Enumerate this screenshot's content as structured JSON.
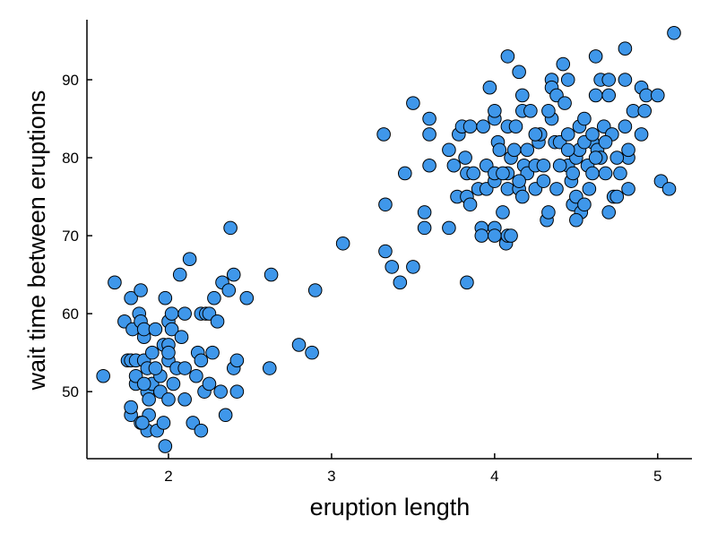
{
  "chart_data": {
    "type": "scatter",
    "title": "",
    "xlabel": "eruption length",
    "ylabel": "wait time between eruptions",
    "xlim": [
      1.5,
      5.21
    ],
    "ylim": [
      41.4,
      97.7
    ],
    "xticks": [
      2,
      3,
      4,
      5
    ],
    "yticks": [
      50,
      60,
      70,
      80,
      90
    ],
    "grid": false,
    "legend": "none",
    "marker_color": "#3f97ea",
    "marker_edge_color": "#000000",
    "points": [
      [
        1.6,
        52
      ],
      [
        1.67,
        64
      ],
      [
        1.73,
        59
      ],
      [
        1.75,
        54
      ],
      [
        1.77,
        54
      ],
      [
        1.77,
        62
      ],
      [
        1.78,
        58
      ],
      [
        1.77,
        47
      ],
      [
        1.77,
        48
      ],
      [
        1.8,
        51
      ],
      [
        1.8,
        52
      ],
      [
        1.8,
        54
      ],
      [
        1.82,
        60
      ],
      [
        1.83,
        63
      ],
      [
        1.83,
        59
      ],
      [
        1.83,
        46
      ],
      [
        1.85,
        57
      ],
      [
        1.85,
        58
      ],
      [
        1.85,
        54
      ],
      [
        1.87,
        45
      ],
      [
        1.87,
        50
      ],
      [
        1.87,
        53
      ],
      [
        1.88,
        47
      ],
      [
        1.88,
        49
      ],
      [
        1.9,
        51
      ],
      [
        1.9,
        55
      ],
      [
        1.92,
        58
      ],
      [
        1.93,
        45
      ],
      [
        1.95,
        52
      ],
      [
        1.95,
        50
      ],
      [
        1.97,
        56
      ],
      [
        1.98,
        43
      ],
      [
        1.98,
        62
      ],
      [
        2.0,
        59
      ],
      [
        2.0,
        56
      ],
      [
        2.0,
        54
      ],
      [
        2.0,
        49
      ],
      [
        2.02,
        58
      ],
      [
        2.02,
        60
      ],
      [
        2.03,
        51
      ],
      [
        2.05,
        53
      ],
      [
        2.07,
        65
      ],
      [
        2.08,
        57
      ],
      [
        2.1,
        60
      ],
      [
        2.1,
        49
      ],
      [
        2.1,
        53
      ],
      [
        2.13,
        67
      ],
      [
        2.15,
        46
      ],
      [
        2.17,
        52
      ],
      [
        2.18,
        55
      ],
      [
        2.2,
        54
      ],
      [
        2.2,
        45
      ],
      [
        2.2,
        60
      ],
      [
        2.22,
        50
      ],
      [
        2.23,
        60
      ],
      [
        2.25,
        60
      ],
      [
        2.25,
        51
      ],
      [
        2.27,
        55
      ],
      [
        2.28,
        62
      ],
      [
        2.3,
        59
      ],
      [
        2.32,
        50
      ],
      [
        2.33,
        64
      ],
      [
        2.35,
        47
      ],
      [
        2.37,
        63
      ],
      [
        2.38,
        71
      ],
      [
        2.4,
        65
      ],
      [
        2.4,
        53
      ],
      [
        2.42,
        54
      ],
      [
        2.42,
        50
      ],
      [
        2.48,
        62
      ],
      [
        2.62,
        53
      ],
      [
        2.63,
        65
      ],
      [
        2.8,
        56
      ],
      [
        2.88,
        55
      ],
      [
        2.9,
        63
      ],
      [
        3.07,
        69
      ],
      [
        1.85,
        51
      ],
      [
        1.84,
        46
      ],
      [
        1.92,
        53
      ],
      [
        1.97,
        46
      ],
      [
        2.0,
        55
      ],
      [
        3.32,
        83
      ],
      [
        3.33,
        74
      ],
      [
        3.33,
        68
      ],
      [
        3.37,
        66
      ],
      [
        3.42,
        64
      ],
      [
        3.45,
        78
      ],
      [
        3.5,
        66
      ],
      [
        3.5,
        87
      ],
      [
        3.57,
        71
      ],
      [
        3.57,
        73
      ],
      [
        3.6,
        79
      ],
      [
        3.6,
        83
      ],
      [
        3.6,
        85
      ],
      [
        3.72,
        81
      ],
      [
        3.72,
        71
      ],
      [
        3.75,
        79
      ],
      [
        3.77,
        75
      ],
      [
        3.78,
        83
      ],
      [
        3.8,
        84
      ],
      [
        3.82,
        80
      ],
      [
        3.83,
        64
      ],
      [
        3.83,
        75
      ],
      [
        3.83,
        78
      ],
      [
        3.85,
        74
      ],
      [
        3.85,
        84
      ],
      [
        3.87,
        78
      ],
      [
        3.9,
        76
      ],
      [
        3.92,
        71
      ],
      [
        3.92,
        70
      ],
      [
        3.93,
        84
      ],
      [
        3.95,
        76
      ],
      [
        3.95,
        79
      ],
      [
        3.97,
        89
      ],
      [
        4.0,
        71
      ],
      [
        4.0,
        70
      ],
      [
        4.0,
        77
      ],
      [
        4.0,
        78
      ],
      [
        4.0,
        85
      ],
      [
        4.0,
        86
      ],
      [
        4.02,
        82
      ],
      [
        4.03,
        81
      ],
      [
        4.05,
        73
      ],
      [
        4.07,
        69
      ],
      [
        4.08,
        70
      ],
      [
        4.08,
        76
      ],
      [
        4.08,
        78
      ],
      [
        4.08,
        84
      ],
      [
        4.08,
        93
      ],
      [
        4.1,
        80
      ],
      [
        4.1,
        70
      ],
      [
        4.12,
        81
      ],
      [
        4.13,
        84
      ],
      [
        4.15,
        91
      ],
      [
        4.15,
        76
      ],
      [
        4.17,
        88
      ],
      [
        4.17,
        75
      ],
      [
        4.17,
        86
      ],
      [
        4.18,
        79
      ],
      [
        4.2,
        78
      ],
      [
        4.2,
        81
      ],
      [
        4.22,
        86
      ],
      [
        4.25,
        79
      ],
      [
        4.25,
        76
      ],
      [
        4.27,
        82
      ],
      [
        4.28,
        83
      ],
      [
        4.3,
        77
      ],
      [
        4.3,
        79
      ],
      [
        4.32,
        72
      ],
      [
        4.33,
        73
      ],
      [
        4.35,
        90
      ],
      [
        4.35,
        89
      ],
      [
        4.35,
        85
      ],
      [
        4.37,
        82
      ],
      [
        4.38,
        76
      ],
      [
        4.38,
        88
      ],
      [
        4.4,
        82
      ],
      [
        4.42,
        92
      ],
      [
        4.43,
        87
      ],
      [
        4.45,
        90
      ],
      [
        4.45,
        83
      ],
      [
        4.45,
        79
      ],
      [
        4.47,
        77
      ],
      [
        4.48,
        74
      ],
      [
        4.5,
        80
      ],
      [
        4.5,
        75
      ],
      [
        4.52,
        84
      ],
      [
        4.52,
        81
      ],
      [
        4.53,
        73
      ],
      [
        4.55,
        74
      ],
      [
        4.55,
        85
      ],
      [
        4.57,
        79
      ],
      [
        4.58,
        76
      ],
      [
        4.6,
        78
      ],
      [
        4.6,
        82
      ],
      [
        4.62,
        88
      ],
      [
        4.62,
        93
      ],
      [
        4.63,
        81
      ],
      [
        4.65,
        80
      ],
      [
        4.65,
        90
      ],
      [
        4.67,
        84
      ],
      [
        4.68,
        78
      ],
      [
        4.7,
        73
      ],
      [
        4.7,
        88
      ],
      [
        4.7,
        90
      ],
      [
        4.72,
        83
      ],
      [
        4.73,
        75
      ],
      [
        4.75,
        75
      ],
      [
        4.77,
        78
      ],
      [
        4.8,
        94
      ],
      [
        4.8,
        90
      ],
      [
        4.8,
        84
      ],
      [
        4.82,
        76
      ],
      [
        4.82,
        80
      ],
      [
        4.85,
        86
      ],
      [
        4.9,
        83
      ],
      [
        4.9,
        89
      ],
      [
        4.92,
        86
      ],
      [
        4.93,
        88
      ],
      [
        5.0,
        88
      ],
      [
        5.02,
        77
      ],
      [
        5.07,
        76
      ],
      [
        5.1,
        96
      ],
      [
        4.4,
        79
      ],
      [
        4.45,
        81
      ],
      [
        4.55,
        82
      ],
      [
        4.6,
        83
      ],
      [
        4.25,
        83
      ],
      [
        4.15,
        77
      ],
      [
        4.05,
        78
      ],
      [
        4.5,
        72
      ],
      [
        4.33,
        86
      ],
      [
        4.62,
        80
      ],
      [
        4.75,
        80
      ],
      [
        4.82,
        81
      ],
      [
        4.68,
        82
      ],
      [
        4.48,
        78
      ]
    ]
  }
}
